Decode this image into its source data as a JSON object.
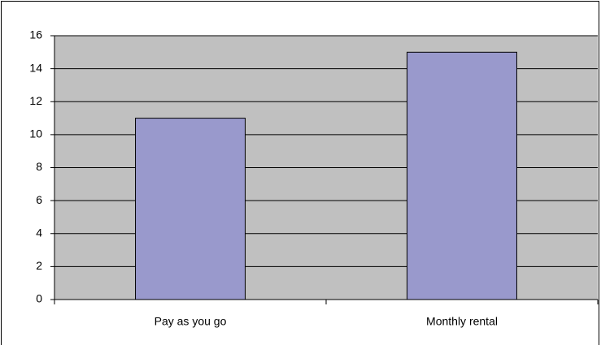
{
  "chart_data": {
    "type": "bar",
    "categories": [
      "Pay as you go",
      "Monthly rental"
    ],
    "values": [
      11,
      15
    ],
    "color": "#9999cc",
    "ylim": [
      0,
      16
    ],
    "yticks": [
      0,
      2,
      4,
      6,
      8,
      10,
      12,
      14,
      16
    ],
    "grid": true
  }
}
